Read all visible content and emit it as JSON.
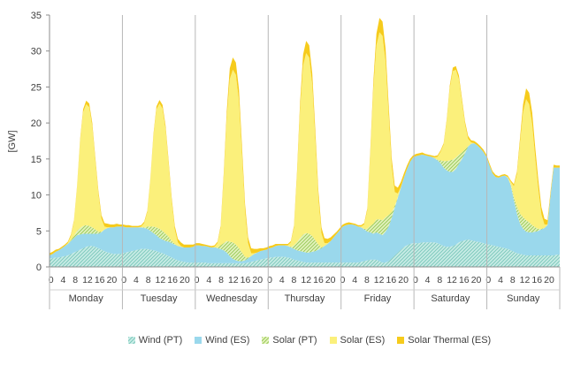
{
  "chart_data": {
    "type": "area",
    "stacked": true,
    "ylabel": "[GW]",
    "ylim": [
      0,
      35
    ],
    "yticks": [
      0,
      5,
      10,
      15,
      20,
      25,
      30,
      35
    ],
    "hour_ticks": [
      "0",
      "4",
      "8",
      "12",
      "16",
      "20"
    ],
    "days": [
      "Monday",
      "Tuesday",
      "Wednesday",
      "Thursday",
      "Friday",
      "Saturday",
      "Sunday"
    ],
    "hours_per_day": 24,
    "grid": "vertical day separators",
    "legend_position": "bottom",
    "series": [
      {
        "name": "Wind (PT)",
        "color": "#8ed1c6",
        "pattern": "hatched",
        "values": [
          [
            1.2,
            1.2,
            1.3,
            1.3,
            1.4,
            1.5,
            1.6,
            1.8,
            2.0,
            2.2,
            2.4,
            2.6,
            2.8,
            2.9,
            2.9,
            2.8,
            2.6,
            2.4,
            2.2,
            2.0,
            1.9,
            1.8,
            1.8,
            1.8
          ],
          [
            1.9,
            2.0,
            2.1,
            2.2,
            2.3,
            2.4,
            2.5,
            2.5,
            2.5,
            2.4,
            2.3,
            2.2,
            2.0,
            1.9,
            1.7,
            1.5,
            1.3,
            1.1,
            0.9,
            0.8,
            0.7,
            0.6,
            0.6,
            0.6
          ],
          [
            0.6,
            0.6,
            0.6,
            0.6,
            0.5,
            0.5,
            0.5,
            0.5,
            0.5,
            0.5,
            0.5,
            0.5,
            0.5,
            0.5,
            0.5,
            0.5,
            0.5,
            0.6,
            0.7,
            0.8,
            0.9,
            1.0,
            1.1,
            1.2
          ],
          [
            1.3,
            1.3,
            1.4,
            1.4,
            1.4,
            1.4,
            1.3,
            1.2,
            1.0,
            0.9,
            0.8,
            0.7,
            0.6,
            0.6,
            0.6,
            0.6,
            0.6,
            0.6,
            0.6,
            0.6,
            0.6,
            0.6,
            0.6,
            0.6
          ],
          [
            0.6,
            0.6,
            0.6,
            0.6,
            0.6,
            0.6,
            0.7,
            0.8,
            0.9,
            1.0,
            1.0,
            1.0,
            0.8,
            0.6,
            0.6,
            0.8,
            1.2,
            1.6,
            2.0,
            2.4,
            2.8,
            3.0,
            3.2,
            3.3
          ],
          [
            3.3,
            3.3,
            3.4,
            3.4,
            3.4,
            3.4,
            3.4,
            3.3,
            3.1,
            2.9,
            2.8,
            2.8,
            2.9,
            3.1,
            3.4,
            3.6,
            3.7,
            3.8,
            3.7,
            3.6,
            3.5,
            3.4,
            3.3,
            3.2
          ],
          [
            3.1,
            3.0,
            2.9,
            2.8,
            2.7,
            2.6,
            2.5,
            2.3,
            2.1,
            1.9,
            1.8,
            1.7,
            1.6,
            1.6,
            1.6,
            1.6,
            1.6,
            1.6,
            1.6,
            1.6,
            1.6,
            1.6,
            1.7,
            1.7
          ]
        ]
      },
      {
        "name": "Wind (ES)",
        "color": "#9ad8ec",
        "values": [
          [
            0.4,
            0.6,
            0.8,
            1.0,
            1.2,
            1.4,
            1.6,
            1.8,
            2.0,
            2.2,
            2.1,
            2.0,
            1.8,
            1.7,
            1.7,
            1.8,
            2.0,
            2.4,
            3.0,
            3.4,
            3.6,
            3.7,
            3.8,
            3.8
          ],
          [
            3.7,
            3.5,
            3.4,
            3.3,
            3.2,
            3.1,
            3.0,
            2.9,
            2.8,
            2.6,
            2.4,
            2.2,
            2.0,
            1.9,
            1.9,
            2.0,
            2.0,
            2.0,
            2.0,
            2.0,
            2.0,
            2.1,
            2.1,
            2.2
          ],
          [
            2.4,
            2.4,
            2.3,
            2.3,
            2.3,
            2.2,
            2.2,
            2.1,
            2.0,
            1.8,
            1.5,
            1.0,
            0.6,
            0.4,
            0.3,
            0.3,
            0.4,
            0.6,
            0.8,
            1.0,
            1.1,
            1.2,
            1.2,
            1.2
          ],
          [
            1.3,
            1.4,
            1.5,
            1.6,
            1.6,
            1.6,
            1.6,
            1.5,
            1.5,
            1.4,
            1.4,
            1.4,
            1.4,
            1.4,
            1.5,
            1.6,
            1.8,
            2.0,
            2.3,
            2.6,
            3.0,
            3.5,
            4.0,
            4.5
          ],
          [
            5.0,
            5.2,
            5.3,
            5.3,
            5.2,
            5.0,
            4.8,
            4.4,
            4.0,
            3.8,
            3.6,
            3.8,
            3.8,
            3.8,
            4.3,
            4.8,
            5.6,
            6.6,
            7.6,
            8.6,
            9.6,
            10.6,
            11.4,
            11.9
          ],
          [
            12.1,
            12.2,
            12.2,
            12.1,
            12.0,
            11.9,
            11.7,
            11.5,
            11.3,
            10.9,
            10.6,
            10.4,
            10.3,
            10.5,
            10.9,
            11.4,
            12.1,
            12.9,
            13.4,
            13.6,
            13.4,
            13.1,
            12.7,
            12.1
          ],
          [
            11.0,
            10.0,
            9.6,
            9.6,
            9.9,
            10.1,
            9.9,
            9.0,
            7.1,
            5.5,
            4.2,
            3.6,
            3.3,
            3.2,
            3.2,
            3.3,
            3.4,
            3.6,
            3.8,
            4.2,
            8.4,
            12.2,
            12.1,
            12.1
          ]
        ]
      },
      {
        "name": "Solar (PT)",
        "color": "#a9d46c",
        "pattern": "hatched",
        "values": [
          [
            0,
            0,
            0,
            0,
            0,
            0,
            0,
            0.1,
            0.3,
            0.6,
            0.9,
            1.1,
            1.2,
            1.1,
            0.9,
            0.6,
            0.3,
            0.1,
            0,
            0,
            0,
            0,
            0,
            0
          ],
          [
            0,
            0,
            0,
            0,
            0,
            0,
            0,
            0.1,
            0.3,
            0.6,
            0.9,
            1.1,
            1.3,
            1.2,
            1.0,
            0.7,
            0.3,
            0.1,
            0,
            0,
            0,
            0,
            0,
            0
          ],
          [
            0,
            0,
            0,
            0,
            0,
            0,
            0,
            0.1,
            0.5,
            1.0,
            1.6,
            2.0,
            2.3,
            2.2,
            1.8,
            1.2,
            0.5,
            0.1,
            0,
            0,
            0,
            0,
            0,
            0
          ],
          [
            0,
            0,
            0,
            0,
            0,
            0,
            0,
            0.1,
            0.5,
            1.1,
            1.8,
            2.4,
            2.7,
            2.6,
            2.2,
            1.5,
            0.7,
            0.1,
            0,
            0,
            0,
            0,
            0,
            0
          ],
          [
            0,
            0,
            0,
            0,
            0,
            0,
            0,
            0.1,
            0.4,
            0.9,
            1.4,
            1.8,
            2.0,
            2.1,
            2.0,
            1.6,
            0.8,
            0.3,
            0.1,
            0,
            0,
            0,
            0,
            0
          ],
          [
            0,
            0,
            0,
            0,
            0,
            0,
            0,
            0.1,
            0.4,
            0.9,
            1.3,
            1.6,
            1.7,
            1.6,
            1.3,
            0.9,
            0.5,
            0.1,
            0,
            0,
            0,
            0,
            0,
            0
          ],
          [
            0,
            0,
            0,
            0,
            0,
            0,
            0,
            0.1,
            0.5,
            1.0,
            1.4,
            1.6,
            1.6,
            1.4,
            1.0,
            0.6,
            0.3,
            0.1,
            0,
            0,
            0,
            0,
            0,
            0
          ]
        ]
      },
      {
        "name": "Solar (ES)",
        "color": "#fbf07b",
        "values": [
          [
            0,
            0,
            0,
            0,
            0,
            0,
            0.1,
            0.6,
            2.0,
            6.0,
            12.0,
            15.8,
            16.8,
            16.5,
            14.0,
            9.5,
            5.2,
            1.8,
            0.4,
            0.1,
            0,
            0,
            0,
            0
          ],
          [
            0,
            0,
            0,
            0,
            0,
            0,
            0.1,
            0.6,
            2.0,
            6.5,
            12.5,
            16.4,
            17.4,
            17.0,
            14.5,
            10.0,
            5.5,
            2.0,
            0.5,
            0.1,
            0,
            0,
            0,
            0
          ],
          [
            0,
            0,
            0,
            0,
            0,
            0,
            0.1,
            0.6,
            2.4,
            9.0,
            17.0,
            22.6,
            24.0,
            23.6,
            20.5,
            13.5,
            6.3,
            2.0,
            0.4,
            0.1,
            0,
            0,
            0,
            0
          ],
          [
            0,
            0,
            0,
            0,
            0,
            0,
            0.1,
            0.6,
            2.4,
            9.2,
            17.8,
            23.5,
            25.0,
            24.5,
            21.0,
            14.0,
            6.5,
            2.0,
            0.4,
            0.1,
            0,
            0,
            0,
            0
          ],
          [
            0,
            0,
            0,
            0,
            0,
            0,
            0.1,
            0.6,
            2.5,
            10.0,
            18.8,
            24.2,
            26.0,
            25.6,
            21.6,
            14.0,
            6.4,
            1.9,
            0.5,
            0.1,
            0,
            0,
            0,
            0
          ],
          [
            0,
            0,
            0,
            0,
            0,
            0,
            0.1,
            0.4,
            1.2,
            2.3,
            5.5,
            10.0,
            12.3,
            12.2,
            10.5,
            7.0,
            3.5,
            1.0,
            0.2,
            0,
            0,
            0,
            0,
            0
          ],
          [
            0,
            0,
            0,
            0,
            0,
            0,
            0.1,
            0.4,
            1.5,
            4.5,
            9.8,
            14.6,
            16.8,
            16.4,
            14.0,
            9.5,
            5.5,
            2.0,
            0.5,
            0.1,
            0,
            0,
            0,
            0
          ]
        ]
      },
      {
        "name": "Solar Thermal (ES)",
        "color": "#f6cb1c",
        "values": [
          [
            0.3,
            0.3,
            0.3,
            0.2,
            0.2,
            0.2,
            0.2,
            0.2,
            0.2,
            0.2,
            0.3,
            0.4,
            0.5,
            0.5,
            0.5,
            0.5,
            0.5,
            0.5,
            0.5,
            0.5,
            0.4,
            0.4,
            0.4,
            0.3
          ],
          [
            0.3,
            0.3,
            0.3,
            0.2,
            0.2,
            0.2,
            0.2,
            0.2,
            0.2,
            0.2,
            0.3,
            0.4,
            0.5,
            0.5,
            0.5,
            0.5,
            0.5,
            0.5,
            0.5,
            0.5,
            0.4,
            0.4,
            0.4,
            0.3
          ],
          [
            0.3,
            0.3,
            0.3,
            0.2,
            0.2,
            0.2,
            0.2,
            0.2,
            0.3,
            0.6,
            1.0,
            1.5,
            1.7,
            1.7,
            1.6,
            1.3,
            1.0,
            0.8,
            0.7,
            0.6,
            0.5,
            0.4,
            0.3,
            0.3
          ],
          [
            0.3,
            0.3,
            0.3,
            0.2,
            0.2,
            0.2,
            0.2,
            0.2,
            0.3,
            0.6,
            1.0,
            1.5,
            1.7,
            1.7,
            1.6,
            1.3,
            1.0,
            0.8,
            0.7,
            0.6,
            0.5,
            0.4,
            0.3,
            0.3
          ],
          [
            0.3,
            0.3,
            0.3,
            0.2,
            0.2,
            0.2,
            0.2,
            0.2,
            0.3,
            0.6,
            1.0,
            1.6,
            2.0,
            2.0,
            1.8,
            1.4,
            1.1,
            0.9,
            0.8,
            0.7,
            0.6,
            0.5,
            0.4,
            0.3
          ],
          [
            0.3,
            0.3,
            0.3,
            0.2,
            0.2,
            0.2,
            0.2,
            0.2,
            0.2,
            0.2,
            0.3,
            0.4,
            0.5,
            0.5,
            0.5,
            0.5,
            0.4,
            0.4,
            0.3,
            0.3,
            0.3,
            0.3,
            0.3,
            0.3
          ],
          [
            0.3,
            0.3,
            0.3,
            0.2,
            0.2,
            0.2,
            0.2,
            0.2,
            0.3,
            0.4,
            0.7,
            1.1,
            1.5,
            1.6,
            1.6,
            1.5,
            1.3,
            1.0,
            0.8,
            0.6,
            0.5,
            0.4,
            0.3,
            0.3
          ]
        ]
      }
    ]
  }
}
